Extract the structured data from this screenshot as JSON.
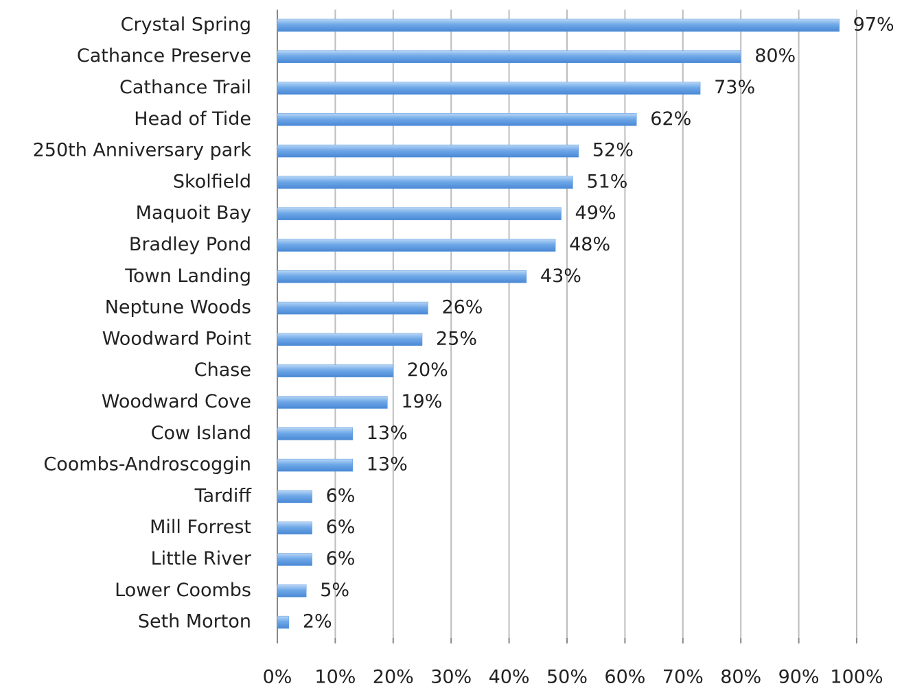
{
  "chart_data": {
    "type": "bar",
    "orientation": "horizontal",
    "categories": [
      "Crystal Spring",
      "Cathance Preserve",
      "Cathance Trail",
      "Head of Tide",
      "250th Anniversary park",
      "Skolfield",
      "Maquoit Bay",
      "Bradley Pond",
      "Town Landing",
      "Neptune Woods",
      "Woodward Point",
      "Chase",
      "Woodward Cove",
      "Cow Island",
      "Coombs-Androscoggin",
      "Tardiff",
      "Mill Forrest",
      "Little River",
      "Lower Coombs",
      "Seth Morton"
    ],
    "values": [
      97,
      80,
      73,
      62,
      52,
      51,
      49,
      48,
      43,
      26,
      25,
      20,
      19,
      13,
      13,
      6,
      6,
      6,
      5,
      2
    ],
    "value_labels": [
      "97%",
      "80%",
      "73%",
      "62%",
      "52%",
      "51%",
      "49%",
      "48%",
      "43%",
      "26%",
      "25%",
      "20%",
      "19%",
      "13%",
      "13%",
      "6%",
      "6%",
      "6%",
      "5%",
      "2%"
    ],
    "color": "#5b9be0",
    "xlim": [
      0,
      100
    ],
    "xticks": [
      {
        "value": 0,
        "label": "0%"
      },
      {
        "value": 10,
        "label": "10%"
      },
      {
        "value": 20,
        "label": "20%"
      },
      {
        "value": 30,
        "label": "30%"
      },
      {
        "value": 40,
        "label": "40%"
      },
      {
        "value": 50,
        "label": "50%"
      },
      {
        "value": 60,
        "label": "60%"
      },
      {
        "value": 70,
        "label": "70%"
      },
      {
        "value": 80,
        "label": "80%"
      },
      {
        "value": 90,
        "label": "90%"
      },
      {
        "value": 100,
        "label": "100%"
      }
    ],
    "grid": true
  }
}
